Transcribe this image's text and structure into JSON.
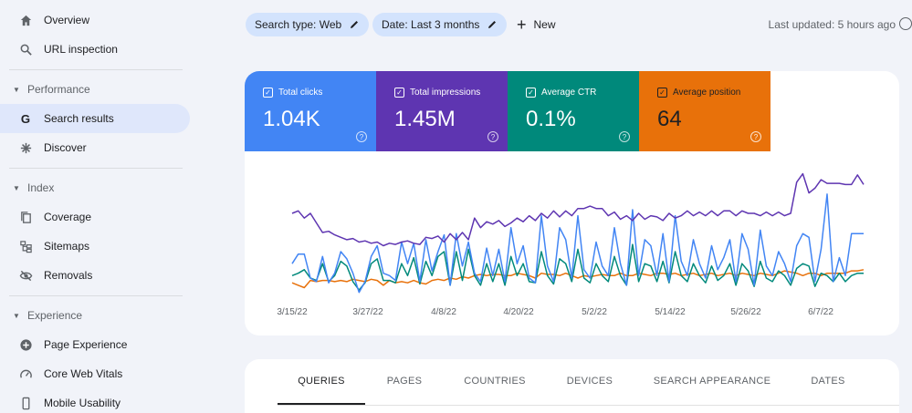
{
  "sidebar": {
    "overview": "Overview",
    "url_inspection": "URL inspection",
    "performance_section": "Performance",
    "search_results": "Search results",
    "discover": "Discover",
    "index_section": "Index",
    "coverage": "Coverage",
    "sitemaps": "Sitemaps",
    "removals": "Removals",
    "experience_section": "Experience",
    "page_experience": "Page Experience",
    "core_web_vitals": "Core Web Vitals",
    "mobile_usability": "Mobile Usability"
  },
  "toolbar": {
    "search_type": "Search type: Web",
    "date": "Date: Last 3 months",
    "new_label": "New",
    "last_updated": "Last updated: 5 hours ago"
  },
  "metrics": {
    "clicks": {
      "label": "Total clicks",
      "value": "1.04K",
      "color": "#4285f4"
    },
    "impressions": {
      "label": "Total impressions",
      "value": "1.45M",
      "color": "#5e35b1"
    },
    "ctr": {
      "label": "Average CTR",
      "value": "0.1%",
      "color": "#00897b"
    },
    "position": {
      "label": "Average position",
      "value": "64",
      "color": "#e8710a"
    }
  },
  "chart_data": {
    "type": "line",
    "x_ticks": [
      "3/15/22",
      "3/27/22",
      "4/8/22",
      "4/20/22",
      "5/2/22",
      "5/14/22",
      "5/26/22",
      "6/7/22"
    ],
    "series": [
      {
        "name": "Total impressions",
        "color": "#5e35b1",
        "values": [
          0.62,
          0.64,
          0.58,
          0.62,
          0.54,
          0.46,
          0.47,
          0.44,
          0.42,
          0.4,
          0.41,
          0.38,
          0.39,
          0.37,
          0.38,
          0.35,
          0.37,
          0.36,
          0.38,
          0.39,
          0.37,
          0.36,
          0.42,
          0.41,
          0.43,
          0.38,
          0.45,
          0.4,
          0.46,
          0.4,
          0.58,
          0.5,
          0.55,
          0.53,
          0.56,
          0.51,
          0.54,
          0.58,
          0.55,
          0.6,
          0.56,
          0.62,
          0.58,
          0.64,
          0.59,
          0.64,
          0.6,
          0.66,
          0.66,
          0.68,
          0.66,
          0.66,
          0.6,
          0.63,
          0.57,
          0.6,
          0.56,
          0.62,
          0.57,
          0.6,
          0.59,
          0.56,
          0.62,
          0.58,
          0.6,
          0.64,
          0.6,
          0.63,
          0.6,
          0.64,
          0.6,
          0.64,
          0.64,
          0.6,
          0.64,
          0.62,
          0.62,
          0.6,
          0.63,
          0.6,
          0.63,
          0.6,
          0.62,
          0.88,
          0.95,
          0.79,
          0.83,
          0.9,
          0.87,
          0.87,
          0.87,
          0.86,
          0.86,
          0.94,
          0.86
        ]
      },
      {
        "name": "Total clicks",
        "color": "#4285f4",
        "values": [
          0.2,
          0.28,
          0.28,
          0.08,
          0.05,
          0.26,
          0.04,
          0.12,
          0.3,
          0.24,
          0.12,
          -0.04,
          0.05,
          0.26,
          0.35,
          0.12,
          0.1,
          0.06,
          0.38,
          0.2,
          0.37,
          0.05,
          0.4,
          0.14,
          0.3,
          0.44,
          0.02,
          0.45,
          0.18,
          0.38,
          0.12,
          0.05,
          0.33,
          0.1,
          0.32,
          0.05,
          0.5,
          0.2,
          0.35,
          0.08,
          0.04,
          0.6,
          0.18,
          0.05,
          0.5,
          0.4,
          0.08,
          0.6,
          0.15,
          0.08,
          0.38,
          0.18,
          0.1,
          0.5,
          0.2,
          0.02,
          0.65,
          0.1,
          0.4,
          0.35,
          0.1,
          0.45,
          0.05,
          0.6,
          0.22,
          0.1,
          0.4,
          0.2,
          0.08,
          0.35,
          0.15,
          0.25,
          0.4,
          0.05,
          0.45,
          0.32,
          0.02,
          0.48,
          0.18,
          0.1,
          0.3,
          0.2,
          0.05,
          0.35,
          0.45,
          0.42,
          0.05,
          0.32,
          0.78,
          0.05,
          0.25,
          0.1,
          0.45,
          0.45,
          0.45
        ]
      },
      {
        "name": "Average CTR",
        "color": "#00897b",
        "values": [
          0.1,
          0.12,
          0.15,
          0.08,
          0.06,
          0.2,
          0.05,
          0.1,
          0.22,
          0.18,
          0.05,
          -0.02,
          0.04,
          0.2,
          0.24,
          0.06,
          0.06,
          0.04,
          0.2,
          0.1,
          0.25,
          0.03,
          0.22,
          0.1,
          0.26,
          0.3,
          0.02,
          0.3,
          0.06,
          0.32,
          0.1,
          0.02,
          0.2,
          0.05,
          0.2,
          0.02,
          0.26,
          0.1,
          0.2,
          0.05,
          0.04,
          0.3,
          0.1,
          0.03,
          0.24,
          0.2,
          0.05,
          0.32,
          0.08,
          0.04,
          0.2,
          0.1,
          0.05,
          0.26,
          0.1,
          0.02,
          0.36,
          0.05,
          0.2,
          0.18,
          0.05,
          0.22,
          0.04,
          0.3,
          0.1,
          0.05,
          0.2,
          0.1,
          0.04,
          0.18,
          0.06,
          0.1,
          0.2,
          0.02,
          0.2,
          0.14,
          0.01,
          0.22,
          0.08,
          0.05,
          0.14,
          0.1,
          0.02,
          0.16,
          0.2,
          0.18,
          0.01,
          0.12,
          0.1,
          0.05,
          0.12,
          0.05,
          0.1,
          0.12,
          0.12
        ]
      },
      {
        "name": "Average position",
        "color": "#e8710a",
        "values": [
          0.04,
          0.02,
          0.0,
          0.06,
          0.05,
          0.06,
          0.06,
          0.05,
          0.06,
          0.05,
          0.07,
          0.06,
          0.05,
          0.07,
          0.06,
          0.02,
          0.06,
          0.04,
          0.05,
          0.04,
          0.06,
          0.04,
          0.03,
          0.06,
          0.07,
          0.06,
          0.08,
          0.07,
          0.09,
          0.08,
          0.1,
          0.11,
          0.1,
          0.11,
          0.11,
          0.1,
          0.1,
          0.12,
          0.11,
          0.1,
          0.08,
          0.12,
          0.11,
          0.11,
          0.1,
          0.12,
          0.1,
          0.08,
          0.1,
          0.09,
          0.1,
          0.11,
          0.1,
          0.1,
          0.12,
          0.1,
          0.1,
          0.12,
          0.11,
          0.1,
          0.12,
          0.12,
          0.11,
          0.12,
          0.1,
          0.11,
          0.12,
          0.1,
          0.11,
          0.12,
          0.1,
          0.11,
          0.12,
          0.1,
          0.12,
          0.11,
          0.1,
          0.12,
          0.11,
          0.1,
          0.12,
          0.14,
          0.13,
          0.12,
          0.1,
          0.12,
          0.12,
          0.1,
          0.12,
          0.12,
          0.12,
          0.12,
          0.14,
          0.14,
          0.15
        ]
      }
    ]
  },
  "tabs": [
    "QUERIES",
    "PAGES",
    "COUNTRIES",
    "DEVICES",
    "SEARCH APPEARANCE",
    "DATES"
  ]
}
